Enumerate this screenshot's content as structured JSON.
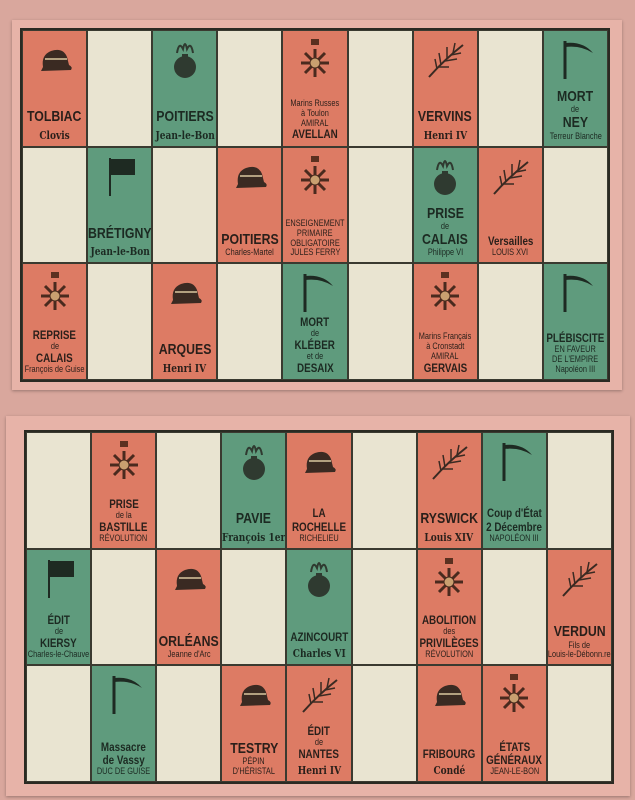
{
  "colors": {
    "red": "#dd7b64",
    "green": "#5f9b7d",
    "cream": "#e9e4d1"
  },
  "cards": [
    {
      "rows": [
        [
          {
            "c": "red",
            "icon": "hat-icon",
            "lines": [
              [
                "TOLBIAC",
                "big"
              ],
              [
                "Clovis",
                "sub"
              ]
            ]
          },
          {
            "c": "blank"
          },
          {
            "c": "green",
            "icon": "grenade-icon",
            "lines": [
              [
                "POITIERS",
                "big"
              ],
              [
                "Jean-le-Bon",
                "sub"
              ]
            ]
          },
          {
            "c": "blank"
          },
          {
            "c": "red",
            "icon": "medal-icon",
            "lines": [
              [
                "Marins Russes",
                "small"
              ],
              [
                "à Toulon",
                "small"
              ],
              [
                "AMIRAL",
                "small"
              ],
              [
                "AVELLAN",
                "mid"
              ]
            ]
          },
          {
            "c": "blank"
          },
          {
            "c": "red",
            "icon": "palm-icon",
            "lines": [
              [
                "VERVINS",
                "big"
              ],
              [
                "Henri IV",
                "sub"
              ]
            ]
          },
          {
            "c": "blank"
          },
          {
            "c": "green",
            "icon": "scythe-icon",
            "lines": [
              [
                "MORT",
                "big"
              ],
              [
                "de",
                "small"
              ],
              [
                "NEY",
                "big"
              ],
              [
                "Terreur Blanche",
                "small"
              ]
            ]
          }
        ],
        [
          {
            "c": "blank"
          },
          {
            "c": "green",
            "icon": "flag-icon",
            "lines": [
              [
                "BRÉTIGNY",
                "big"
              ],
              [
                "Jean-le-Bon",
                "sub"
              ]
            ]
          },
          {
            "c": "blank"
          },
          {
            "c": "red",
            "icon": "hat-icon",
            "lines": [
              [
                "POITIERS",
                "big"
              ],
              [
                "Charles-Martel",
                "small"
              ]
            ]
          },
          {
            "c": "red",
            "icon": "medal-icon",
            "lines": [
              [
                "ENSEIGNEMENT",
                "small"
              ],
              [
                "PRIMAIRE",
                "small"
              ],
              [
                "OBLIGATOIRE",
                "small"
              ],
              [
                "JULES FERRY",
                "small"
              ]
            ]
          },
          {
            "c": "blank"
          },
          {
            "c": "green",
            "icon": "grenade-icon",
            "lines": [
              [
                "PRISE",
                "big"
              ],
              [
                "de",
                "small"
              ],
              [
                "CALAIS",
                "big"
              ],
              [
                "Philippe VI",
                "small"
              ]
            ]
          },
          {
            "c": "red",
            "icon": "palm-icon",
            "lines": [
              [
                "Versailles",
                "mid"
              ],
              [
                "LOUIS XVI",
                "small"
              ]
            ]
          },
          {
            "c": "blank"
          }
        ],
        [
          {
            "c": "red",
            "icon": "medal-icon",
            "lines": [
              [
                "REPRISE",
                "mid"
              ],
              [
                "de",
                "small"
              ],
              [
                "CALAIS",
                "mid"
              ],
              [
                "François de Guise",
                "small"
              ]
            ]
          },
          {
            "c": "blank"
          },
          {
            "c": "red",
            "icon": "hat-icon",
            "lines": [
              [
                "ARQUES",
                "big"
              ],
              [
                "Henri IV",
                "sub"
              ]
            ]
          },
          {
            "c": "blank"
          },
          {
            "c": "green",
            "icon": "scythe-icon",
            "lines": [
              [
                "MORT",
                "mid"
              ],
              [
                "de",
                "small"
              ],
              [
                "KLÉBER",
                "mid"
              ],
              [
                "et de",
                "small"
              ],
              [
                "DESAIX",
                "mid"
              ]
            ]
          },
          {
            "c": "blank"
          },
          {
            "c": "red",
            "icon": "medal-icon",
            "lines": [
              [
                "Marins Français",
                "small"
              ],
              [
                "à Cronstadt",
                "small"
              ],
              [
                "AMIRAL",
                "small"
              ],
              [
                "GERVAIS",
                "mid"
              ]
            ]
          },
          {
            "c": "blank"
          },
          {
            "c": "green",
            "icon": "scythe-icon",
            "lines": [
              [
                "PLÉBISCITE",
                "mid"
              ],
              [
                "EN FAVEUR",
                "small"
              ],
              [
                "DE L'EMPIRE",
                "small"
              ],
              [
                "Napoléon III",
                "small"
              ]
            ]
          }
        ]
      ]
    },
    {
      "rows": [
        [
          {
            "c": "blank"
          },
          {
            "c": "red",
            "icon": "medal-icon",
            "lines": [
              [
                "PRISE",
                "mid"
              ],
              [
                "de la",
                "small"
              ],
              [
                "BASTILLE",
                "mid"
              ],
              [
                "RÉVOLUTION",
                "small"
              ]
            ]
          },
          {
            "c": "blank"
          },
          {
            "c": "green",
            "icon": "grenade-icon",
            "lines": [
              [
                "PAVIE",
                "big"
              ],
              [
                "François 1er",
                "sub"
              ]
            ]
          },
          {
            "c": "red",
            "icon": "hat-icon",
            "lines": [
              [
                "LA",
                "mid"
              ],
              [
                "ROCHELLE",
                "mid"
              ],
              [
                "RICHELIEU",
                "small"
              ]
            ]
          },
          {
            "c": "blank"
          },
          {
            "c": "red",
            "icon": "palm-icon",
            "lines": [
              [
                "RYSWICK",
                "big"
              ],
              [
                "Louis XIV",
                "sub"
              ]
            ]
          },
          {
            "c": "green",
            "icon": "scythe-icon",
            "lines": [
              [
                "Coup d'État",
                "mid"
              ],
              [
                "2 Décembre",
                "mid"
              ],
              [
                "NAPOLÉON III",
                "small"
              ]
            ]
          },
          {
            "c": "blank"
          }
        ],
        [
          {
            "c": "green",
            "icon": "flag-icon",
            "lines": [
              [
                "ÉDIT",
                "mid"
              ],
              [
                "de",
                "small"
              ],
              [
                "KIERSY",
                "mid"
              ],
              [
                "Charles-le-Chauve",
                "small"
              ]
            ]
          },
          {
            "c": "blank"
          },
          {
            "c": "red",
            "icon": "hat-icon",
            "lines": [
              [
                "ORLÉANS",
                "big"
              ],
              [
                "Jeanne d'Arc",
                "small"
              ]
            ]
          },
          {
            "c": "blank"
          },
          {
            "c": "green",
            "icon": "grenade-icon",
            "lines": [
              [
                "AZINCOURT",
                "mid"
              ],
              [
                "Charles VI",
                "sub"
              ]
            ]
          },
          {
            "c": "blank"
          },
          {
            "c": "red",
            "icon": "medal-icon",
            "lines": [
              [
                "ABOLITION",
                "mid"
              ],
              [
                "des",
                "small"
              ],
              [
                "PRIVILÈGES",
                "mid"
              ],
              [
                "RÉVOLUTION",
                "small"
              ]
            ]
          },
          {
            "c": "blank"
          },
          {
            "c": "red",
            "icon": "palm-icon",
            "lines": [
              [
                "VERDUN",
                "big"
              ],
              [
                "Fils de",
                "small"
              ],
              [
                "Louis-le-Débonn.re",
                "small"
              ]
            ]
          }
        ],
        [
          {
            "c": "blank"
          },
          {
            "c": "green",
            "icon": "scythe-icon",
            "lines": [
              [
                "Massacre",
                "mid"
              ],
              [
                "de Vassy",
                "mid"
              ],
              [
                "DUC DE GUISE",
                "small"
              ]
            ]
          },
          {
            "c": "blank"
          },
          {
            "c": "red",
            "icon": "hat-icon",
            "lines": [
              [
                "TESTRY",
                "big"
              ],
              [
                "PÉPIN",
                "small"
              ],
              [
                "D'HÉRISTAL",
                "small"
              ]
            ]
          },
          {
            "c": "red",
            "icon": "palm-icon",
            "lines": [
              [
                "ÉDIT",
                "mid"
              ],
              [
                "de",
                "small"
              ],
              [
                "NANTES",
                "mid"
              ],
              [
                "Henri IV",
                "sub"
              ]
            ]
          },
          {
            "c": "blank"
          },
          {
            "c": "red",
            "icon": "hat-icon",
            "lines": [
              [
                "FRIBOURG",
                "mid"
              ],
              [
                "Condé",
                "sub"
              ]
            ]
          },
          {
            "c": "red",
            "icon": "medal-icon",
            "lines": [
              [
                "ÉTATS",
                "mid"
              ],
              [
                "GÉNÉRAUX",
                "mid"
              ],
              [
                "JEAN-LE-BON",
                "small"
              ]
            ]
          },
          {
            "c": "blank"
          }
        ]
      ]
    }
  ]
}
